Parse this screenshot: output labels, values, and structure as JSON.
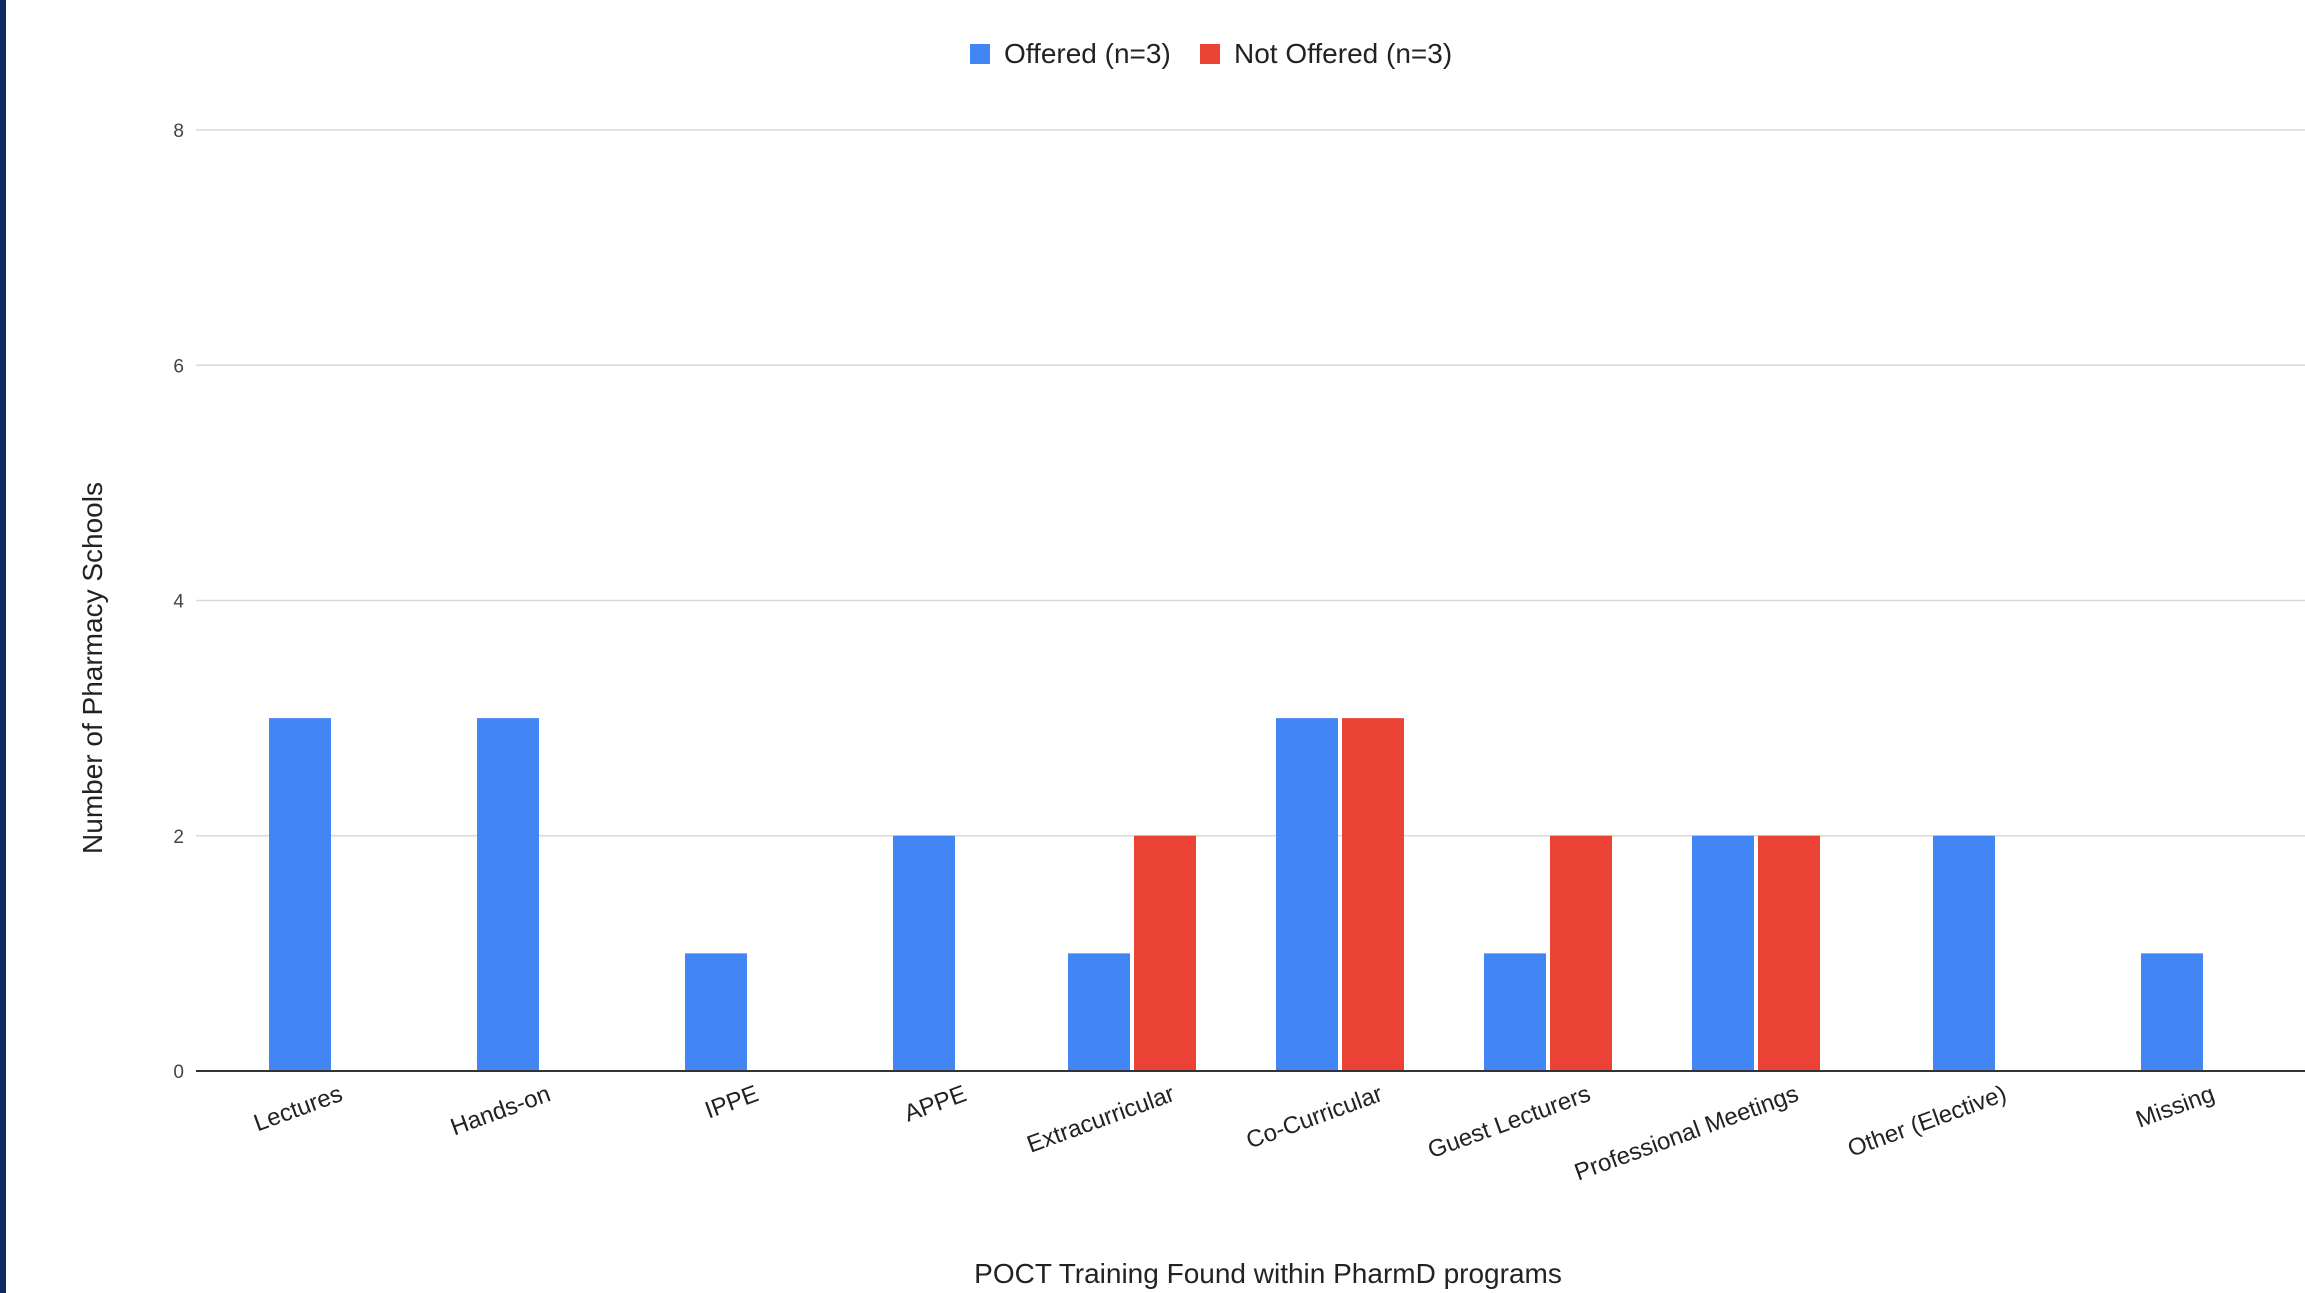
{
  "chart_data": {
    "type": "bar",
    "title": "",
    "xlabel": "POCT Training Found within PharmD programs",
    "ylabel": "Number of Pharmacy Schools",
    "categories": [
      "Lectures",
      "Hands-on",
      "IPPE",
      "APPE",
      "Extracurricular",
      "Co-Curricular",
      "Guest Lecturers",
      "Professional Meetings",
      "Other (Elective)",
      "Missing"
    ],
    "series": [
      {
        "name": "Offered (n=3)",
        "color": "#4285f4",
        "values": [
          3,
          3,
          1,
          2,
          1,
          3,
          1,
          2,
          2,
          1
        ]
      },
      {
        "name": "Not Offered (n=3)",
        "color": "#ea4335",
        "values": [
          0,
          0,
          0,
          0,
          2,
          3,
          2,
          2,
          0,
          0
        ]
      }
    ],
    "ylim": [
      0,
      8
    ],
    "yticks": [
      "0",
      "2",
      "4",
      "6",
      "8"
    ],
    "grid": true,
    "legend_position": "top-center"
  }
}
